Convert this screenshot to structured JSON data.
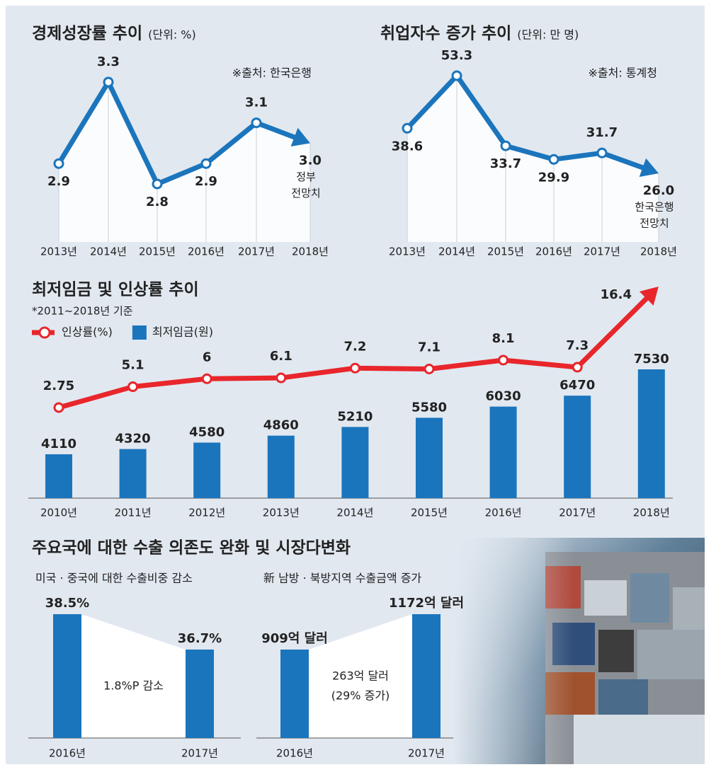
{
  "chart_data": [
    {
      "type": "line",
      "title": "경제성장률 추이",
      "subtitle": "(단위: %)",
      "source": "※출처: 한국은행",
      "categories": [
        "2013년",
        "2014년",
        "2015년",
        "2016년",
        "2017년",
        "2018년"
      ],
      "values": [
        2.9,
        3.3,
        2.8,
        2.9,
        3.1,
        3.0
      ],
      "value_labels": [
        "2.9",
        "3.3",
        "2.8",
        "2.9",
        "3.1",
        "3.0"
      ],
      "annotation": [
        "정부",
        "전망치"
      ],
      "color": "#1b75bc"
    },
    {
      "type": "line",
      "title": "취업자수 증가 추이",
      "subtitle": "(단위: 만 명)",
      "source": "※출처: 통계청",
      "categories": [
        "2013년",
        "2014년",
        "2015년",
        "2016년",
        "2017년",
        "2018년"
      ],
      "values": [
        38.6,
        53.3,
        33.7,
        29.9,
        31.7,
        26.0
      ],
      "value_labels": [
        "38.6",
        "53.3",
        "33.7",
        "29.9",
        "31.7",
        "26.0"
      ],
      "annotation": [
        "한국은행",
        "전망치"
      ],
      "color": "#1b75bc"
    },
    {
      "type": "combo",
      "title": "최저임금 및 인상률 추이",
      "subtitle": "*2011~2018년 기준",
      "categories": [
        "2010년",
        "2011년",
        "2012년",
        "2013년",
        "2014년",
        "2015년",
        "2016년",
        "2017년",
        "2018년"
      ],
      "series": [
        {
          "name": "인상률(%)",
          "type": "line",
          "color": "#e8262b",
          "values": [
            2.75,
            5.1,
            6,
            6.1,
            7.2,
            7.1,
            8.1,
            7.3,
            16.4
          ]
        },
        {
          "name": "최저임금(원)",
          "type": "bar",
          "color": "#1b75bc",
          "values": [
            4110,
            4320,
            4580,
            4860,
            5210,
            5580,
            6030,
            6470,
            7530
          ]
        }
      ]
    },
    {
      "type": "bar",
      "heading": "주요국에 대한 수출 의존도 완화 및 시장다변화",
      "title": "미국 · 중국에 대한 수출비중 감소",
      "categories": [
        "2016년",
        "2017년"
      ],
      "values": [
        38.5,
        36.7
      ],
      "value_labels": [
        "38.5%",
        "36.7%"
      ],
      "annotation": [
        "1.8%P 감소"
      ],
      "color": "#1b75bc"
    },
    {
      "type": "bar",
      "title": "新 남방 · 북방지역 수출금액 증가",
      "categories": [
        "2016년",
        "2017년"
      ],
      "values": [
        909,
        1172
      ],
      "value_labels": [
        "909억 달러",
        "1172억 달러"
      ],
      "annotation": [
        "263억 달러",
        "(29% 증가)"
      ],
      "color": "#1b75bc"
    }
  ]
}
